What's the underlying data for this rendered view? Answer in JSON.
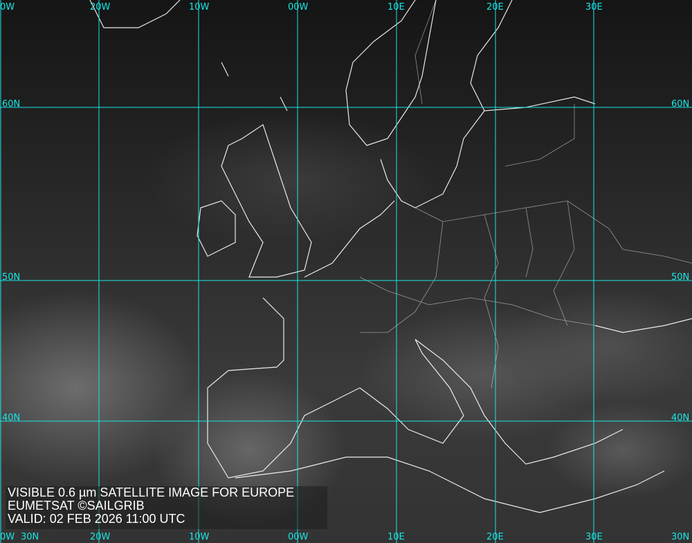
{
  "caption": {
    "line1": "VISIBLE 0.6 µm SATELLITE IMAGE FOR EUROPE",
    "line2": "EUMETSAT ©SAILGRIB",
    "line3": "VALID:  02 FEB 2026 11:00 UTC"
  },
  "grid_color": "#19e6e6",
  "coast_color": "#ffffff",
  "longitudes": [
    "0W",
    "20W",
    "10W",
    "00W",
    "10E",
    "20E",
    "30E"
  ],
  "latitudes": [
    "60N",
    "50N",
    "40N"
  ],
  "bottom_lat": "30N",
  "bottom_left_lon": "0W"
}
